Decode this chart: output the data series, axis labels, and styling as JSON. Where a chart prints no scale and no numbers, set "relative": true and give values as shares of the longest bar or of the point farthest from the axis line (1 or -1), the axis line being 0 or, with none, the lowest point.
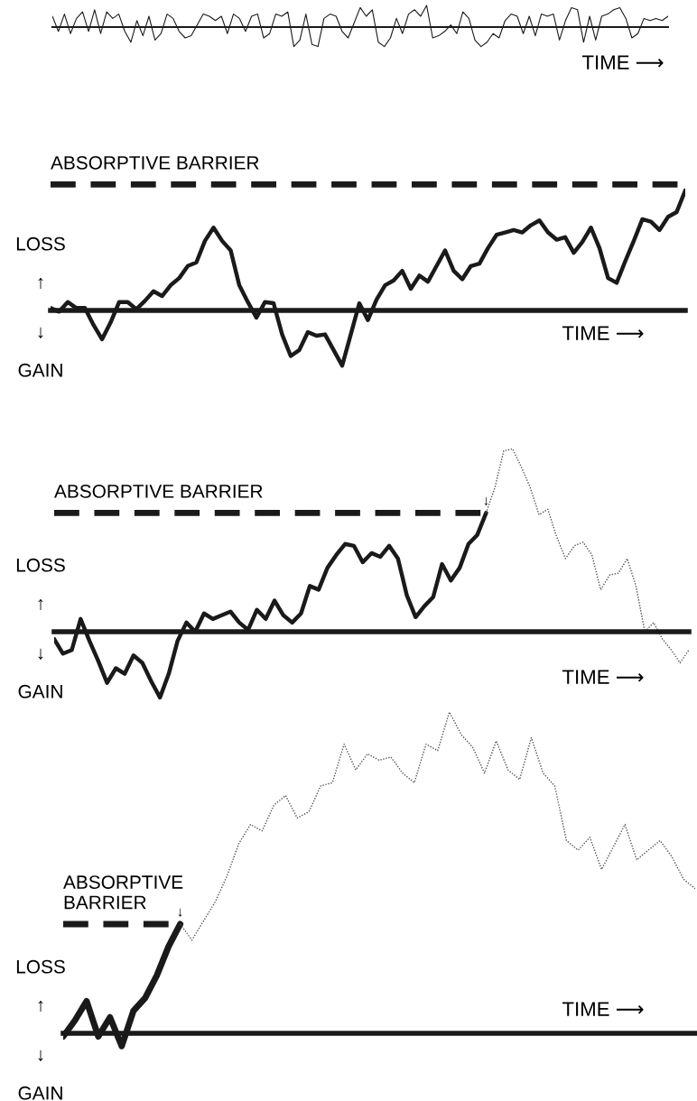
{
  "chart_data": [
    {
      "type": "line",
      "relative": true,
      "xlabel": "TIME ⟶",
      "color": "#1a1a1a",
      "categories": [
        null,
        null,
        null,
        null,
        null,
        null,
        null,
        null,
        null,
        null,
        null,
        null,
        null,
        null,
        null,
        null,
        null,
        null,
        null,
        null,
        null,
        null,
        null,
        null,
        null,
        null,
        null,
        null,
        null,
        null,
        null,
        null,
        null,
        null,
        null,
        null,
        null,
        null,
        null,
        null,
        null,
        null,
        null,
        null,
        null,
        null,
        null,
        null,
        null,
        null,
        null,
        null,
        null,
        null,
        null,
        null,
        null,
        null,
        null,
        null,
        null,
        null,
        null,
        null,
        null,
        null,
        null,
        null,
        null,
        null,
        null,
        null,
        null,
        null,
        null,
        null,
        null,
        null,
        null,
        null,
        null,
        null,
        null,
        null,
        null,
        null,
        null,
        null,
        null,
        null,
        null,
        null,
        null,
        null,
        null,
        null,
        null,
        null,
        null,
        null,
        null,
        null,
        null
      ],
      "values": [
        0.5,
        -0.2,
        0.6,
        -0.3,
        0.4,
        0.7,
        -0.2,
        0.8,
        -0.3,
        0.7,
        0.4,
        0.6,
        -0.2,
        -0.7,
        0.3,
        -0.4,
        0.5,
        -0.6,
        -0.3,
        0.6,
        0.4,
        -0.2,
        -0.5,
        -0.4,
        0.1,
        0.6,
        0.5,
        0.3,
        0.5,
        -0.3,
        0.6,
        0.4,
        -0.2,
        0.5,
        0.6,
        -0.5,
        -0.3,
        0.6,
        0.5,
        0.7,
        -0.9,
        -0.6,
        0.6,
        -0.8,
        -0.9,
        0.4,
        0.6,
        0.5,
        -0.2,
        -0.5,
        0.2,
        0.9,
        0.5,
        0.8,
        -0.7,
        -0.9,
        -0.5,
        0.4,
        -0.3,
        0.6,
        0.8,
        0.5,
        1.0,
        -0.5,
        -0.4,
        -0.2,
        0.1,
        -0.3,
        0.7,
        0.4,
        -0.6,
        -0.9,
        -0.7,
        -0.3,
        -0.5,
        0.3,
        0.6,
        0.5,
        -0.3,
        0.5,
        -0.4,
        0.6,
        0.5,
        0.6,
        -0.6,
        0.3,
        0.9,
        0.8,
        -0.7,
        0.5,
        -0.6,
        0.5,
        0.6,
        0.8,
        0.9,
        0.4,
        -0.5,
        -0.3,
        0.4,
        0.3,
        0.4,
        0.3,
        0.5
      ]
    },
    {
      "type": "line",
      "relative": true,
      "xlabel": "TIME ⟶",
      "annotations": [
        "LOSS",
        "↑",
        "↓",
        "GAIN"
      ],
      "ref_lines": [
        {
          "axis": "y",
          "value": 1.05,
          "label": "ABSORPTIVE BARRIER",
          "color": "#1a1a1a",
          "line_style": "dashed"
        }
      ],
      "categories": [
        null,
        null,
        null,
        null,
        null,
        null,
        null,
        null,
        null,
        null,
        null,
        null,
        null,
        null,
        null,
        null,
        null,
        null,
        null,
        null,
        null,
        null,
        null,
        null,
        null,
        null,
        null,
        null,
        null,
        null,
        null,
        null,
        null,
        null,
        null,
        null,
        null,
        null,
        null,
        null,
        null,
        null,
        null,
        null,
        null,
        null,
        null,
        null,
        null,
        null,
        null,
        null,
        null,
        null,
        null,
        null,
        null,
        null,
        null,
        null,
        null,
        null,
        null,
        null,
        null,
        null,
        null,
        null,
        null,
        null,
        null,
        null,
        null,
        null,
        null
      ],
      "series": [
        {
          "color": "#1a1a1a",
          "line_style": "solid",
          "values": [
            0.02,
            -0.01,
            0.07,
            0.02,
            0.02,
            -0.12,
            -0.24,
            -0.1,
            0.07,
            0.07,
            0.01,
            0.08,
            0.16,
            0.12,
            0.21,
            0.27,
            0.37,
            0.4,
            0.58,
            0.69,
            0.58,
            0.5,
            0.21,
            0.07,
            -0.06,
            0.07,
            0.06,
            -0.2,
            -0.38,
            -0.33,
            -0.18,
            -0.21,
            -0.2,
            -0.33,
            -0.46,
            -0.2,
            0.06,
            -0.08,
            0.09,
            0.21,
            0.25,
            0.33,
            0.18,
            0.29,
            0.24,
            0.37,
            0.5,
            0.33,
            0.26,
            0.37,
            0.39,
            0.52,
            0.63,
            0.65,
            0.67,
            0.65,
            0.71,
            0.75,
            0.65,
            0.59,
            0.61,
            0.48,
            0.57,
            0.69,
            0.52,
            0.27,
            0.23,
            0.41,
            0.58,
            0.76,
            0.74,
            0.67,
            0.78,
            0.82,
            1.0
          ]
        }
      ]
    },
    {
      "type": "line",
      "relative": true,
      "xlabel": "TIME ⟶",
      "annotations": [
        "LOSS",
        "↑",
        "↓",
        "GAIN",
        "↓"
      ],
      "ref_lines": [
        {
          "axis": "y",
          "value": 0.65,
          "label": "ABSORPTIVE BARRIER",
          "color": "#1a1a1a",
          "line_style": "dashed"
        }
      ],
      "categories": [
        null,
        null,
        null,
        null,
        null,
        null,
        null,
        null,
        null,
        null,
        null,
        null,
        null,
        null,
        null,
        null,
        null,
        null,
        null,
        null,
        null,
        null,
        null,
        null,
        null,
        null,
        null,
        null,
        null,
        null,
        null,
        null,
        null,
        null,
        null,
        null,
        null,
        null,
        null,
        null,
        null,
        null,
        null,
        null,
        null,
        null,
        null,
        null,
        null,
        null,
        null,
        null,
        null,
        null,
        null,
        null,
        null,
        null,
        null,
        null,
        null,
        null,
        null,
        null,
        null,
        null,
        null,
        null,
        null,
        null,
        null,
        null,
        null
      ],
      "series": [
        {
          "color": "#1a1a1a",
          "line_style": "solid",
          "values": [
            -0.04,
            -0.12,
            -0.1,
            0.07,
            -0.05,
            -0.16,
            -0.28,
            -0.2,
            -0.23,
            -0.13,
            -0.17,
            -0.27,
            -0.36,
            -0.23,
            -0.05,
            0.05,
            0.0,
            0.1,
            0.07,
            0.09,
            0.11,
            0.05,
            0.01,
            0.12,
            0.07,
            0.17,
            0.09,
            0.05,
            0.1,
            0.25,
            0.23,
            0.35,
            0.42,
            0.48,
            0.47,
            0.38,
            0.43,
            0.41,
            0.47,
            0.4,
            0.2,
            0.08,
            0.14,
            0.19,
            0.37,
            0.28,
            0.35,
            0.48,
            0.53,
            0.65,
            null,
            null,
            null,
            null,
            null,
            null,
            null,
            null,
            null,
            null,
            null,
            null,
            null,
            null,
            null,
            null,
            null,
            null,
            null,
            null,
            null,
            null,
            null
          ]
        },
        {
          "color": "#555555",
          "line_style": "dotted",
          "values": [
            null,
            null,
            null,
            null,
            null,
            null,
            null,
            null,
            null,
            null,
            null,
            null,
            null,
            null,
            null,
            null,
            null,
            null,
            null,
            null,
            null,
            null,
            null,
            null,
            null,
            null,
            null,
            null,
            null,
            null,
            null,
            null,
            null,
            null,
            null,
            null,
            null,
            null,
            null,
            null,
            null,
            null,
            null,
            null,
            null,
            null,
            null,
            null,
            null,
            0.65,
            0.79,
            0.99,
            1.0,
            0.9,
            0.79,
            0.64,
            0.67,
            0.52,
            0.4,
            0.47,
            0.49,
            0.42,
            0.23,
            0.31,
            0.32,
            0.4,
            0.25,
            0.0,
            0.05,
            -0.04,
            -0.1,
            -0.17,
            -0.1
          ]
        }
      ]
    },
    {
      "type": "line",
      "relative": true,
      "xlabel": "TIME ⟶",
      "annotations": [
        "LOSS",
        "↑",
        "↓",
        "GAIN",
        "↓"
      ],
      "ref_lines": [
        {
          "axis": "y",
          "value": 0.34,
          "label": "ABSORPTIVE\nBARRIER",
          "color": "#1a1a1a",
          "line_style": "dashed"
        }
      ],
      "categories": [
        null,
        null,
        null,
        null,
        null,
        null,
        null,
        null,
        null,
        null,
        null,
        null,
        null,
        null,
        null,
        null,
        null,
        null,
        null,
        null,
        null,
        null,
        null,
        null,
        null,
        null,
        null,
        null,
        null,
        null,
        null,
        null,
        null,
        null,
        null,
        null,
        null,
        null,
        null,
        null,
        null,
        null,
        null,
        null,
        null,
        null,
        null,
        null,
        null,
        null,
        null,
        null,
        null,
        null,
        null
      ],
      "series": [
        {
          "color": "#1a1a1a",
          "line_style": "solid",
          "values": [
            -0.01,
            0.04,
            0.1,
            -0.01,
            0.05,
            -0.04,
            0.07,
            0.11,
            0.18,
            0.27,
            0.34,
            null,
            null,
            null,
            null,
            null,
            null,
            null,
            null,
            null,
            null,
            null,
            null,
            null,
            null,
            null,
            null,
            null,
            null,
            null,
            null,
            null,
            null,
            null,
            null,
            null,
            null,
            null,
            null,
            null,
            null,
            null,
            null,
            null,
            null,
            null,
            null,
            null,
            null,
            null,
            null,
            null,
            null,
            null,
            null
          ]
        },
        {
          "color": "#555555",
          "line_style": "dotted",
          "values": [
            null,
            null,
            null,
            null,
            null,
            null,
            null,
            null,
            null,
            null,
            0.34,
            0.29,
            0.35,
            0.41,
            0.49,
            0.59,
            0.65,
            0.63,
            0.71,
            0.74,
            0.67,
            0.69,
            0.77,
            0.78,
            0.9,
            0.82,
            0.87,
            0.85,
            0.86,
            0.81,
            0.78,
            0.9,
            0.88,
            1.0,
            0.93,
            0.89,
            0.81,
            0.91,
            0.82,
            0.79,
            0.92,
            0.81,
            0.77,
            0.6,
            0.57,
            0.61,
            0.51,
            0.58,
            0.65,
            0.54,
            0.57,
            0.6,
            0.55,
            0.48,
            0.45
          ]
        }
      ]
    }
  ]
}
